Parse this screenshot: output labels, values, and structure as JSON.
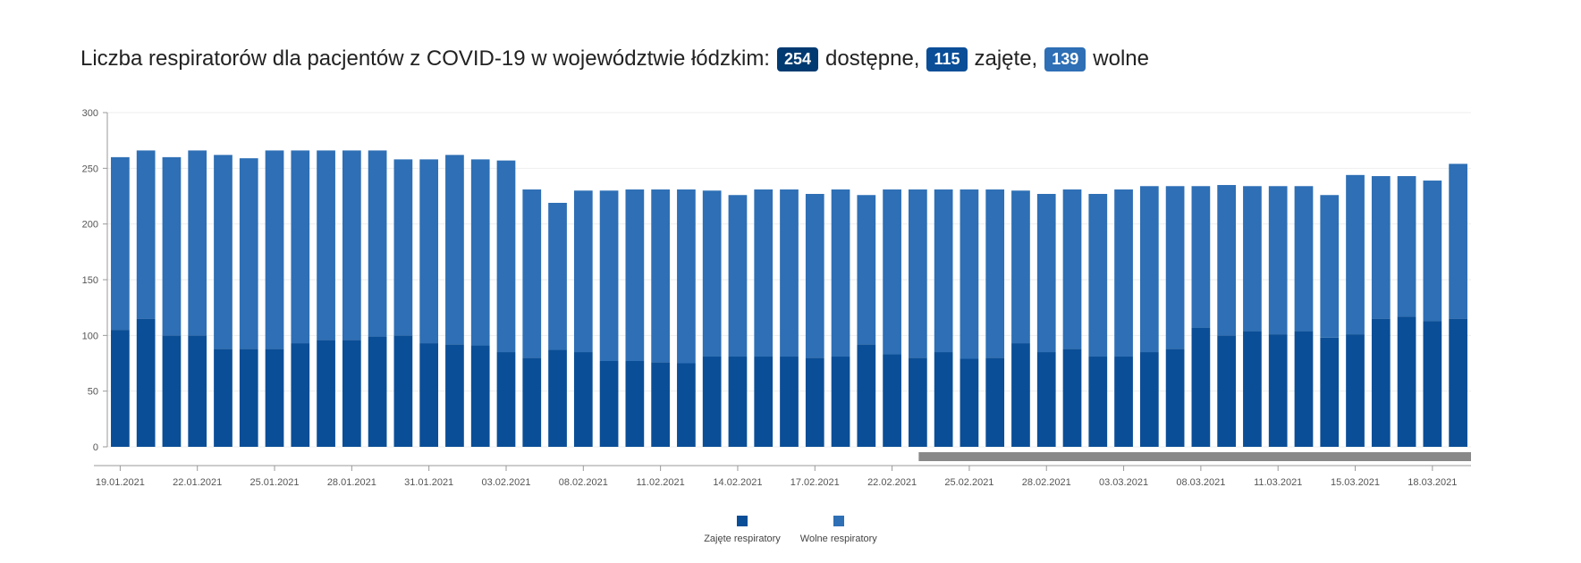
{
  "headline": {
    "prefix": "Liczba respiratorów dla pacjentów z COVID-19 w województwie łódzkim:",
    "available_value": "254",
    "available_label": "dostępne,",
    "occupied_value": "115",
    "occupied_label": "zajęte,",
    "free_value": "139",
    "free_label": "wolne"
  },
  "colors": {
    "occupied": "#0a4e97",
    "free": "#2e6fb5",
    "scrollbar": "#888888",
    "axis": "#999999",
    "grid": "#eeeeee"
  },
  "chart_data": {
    "type": "bar",
    "stacked": true,
    "ylim": [
      0,
      300
    ],
    "yticks": [
      0,
      50,
      100,
      150,
      200,
      250,
      300
    ],
    "grid": true,
    "legend_placement": "bottom-center",
    "xtick_labels": [
      "19.01.2021",
      "22.01.2021",
      "25.01.2021",
      "28.01.2021",
      "31.01.2021",
      "03.02.2021",
      "08.02.2021",
      "11.02.2021",
      "14.02.2021",
      "17.02.2021",
      "22.02.2021",
      "25.02.2021",
      "28.02.2021",
      "03.03.2021",
      "08.03.2021",
      "11.03.2021",
      "15.03.2021",
      "18.03.2021"
    ],
    "xtick_bar_index": [
      0,
      3,
      6,
      9,
      12,
      15,
      18,
      21,
      24,
      27,
      30,
      33,
      36,
      39,
      42,
      45,
      48,
      51
    ],
    "series": [
      {
        "name": "Zajęte respiratory",
        "values": [
          105,
          115,
          100,
          100,
          88,
          88,
          88,
          93,
          96,
          96,
          99,
          100,
          93,
          92,
          91,
          85,
          80,
          87,
          85,
          77,
          77,
          76,
          75,
          81,
          81,
          81,
          81,
          80,
          81,
          92,
          83,
          80,
          85,
          79,
          80,
          93,
          85,
          88,
          81,
          81,
          85,
          88,
          107,
          100,
          104,
          101,
          104,
          98,
          101,
          115,
          117,
          113,
          115
        ]
      },
      {
        "name": "Wolne respiratory",
        "values": [
          155,
          151,
          160,
          166,
          174,
          171,
          178,
          173,
          170,
          170,
          167,
          158,
          165,
          170,
          167,
          172,
          151,
          132,
          145,
          153,
          154,
          155,
          156,
          149,
          145,
          150,
          150,
          147,
          150,
          134,
          148,
          151,
          146,
          152,
          151,
          137,
          142,
          143,
          146,
          150,
          149,
          146,
          127,
          135,
          130,
          133,
          130,
          128,
          143,
          128,
          126,
          126,
          139
        ]
      }
    ],
    "total_bars": 53
  },
  "scrollbar": {
    "window_start_fraction": 0.595,
    "window_end_fraction": 1.0
  }
}
